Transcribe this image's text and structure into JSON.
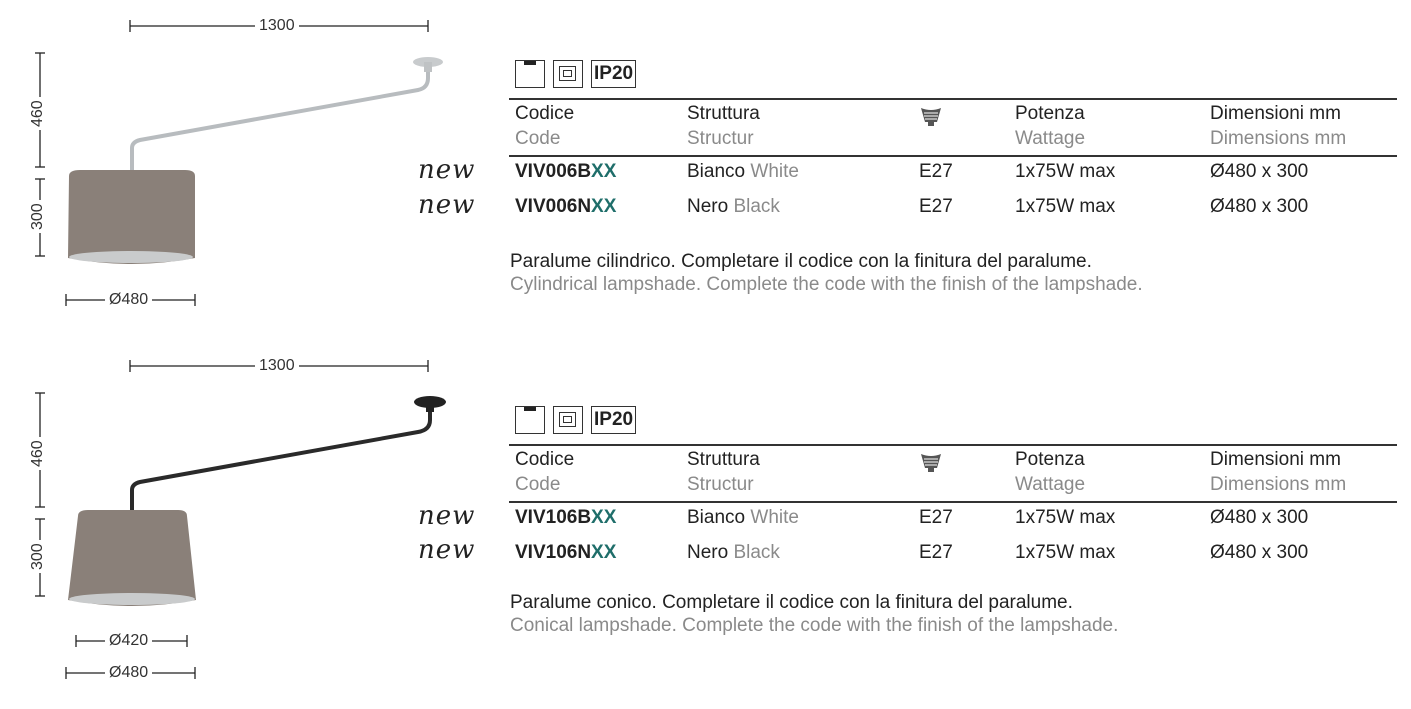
{
  "headers": {
    "code_it": "Codice",
    "code_en": "Code",
    "struct_it": "Struttura",
    "struct_en": "Structur",
    "bulb_icon": "e27-bulb-icon",
    "power_it": "Potenza",
    "power_en": "Wattage",
    "dim_it": "Dimensioni mm",
    "dim_en": "Dimensions mm"
  },
  "badges": {
    "ceiling_icon": "ceiling-mount-icon",
    "class2_icon": "double-insulation-icon",
    "ip": "IP20"
  },
  "new_label": "new",
  "accent": "#1f6e6a",
  "sections": [
    {
      "width": "1300",
      "height_arm": "460",
      "height_shade": "300",
      "diam_bottom": "Ø480",
      "rows": [
        {
          "code": "VIV006B",
          "suffix": "XX",
          "struct_it": "Bianco",
          "struct_en": "White",
          "socket": "E27",
          "power": "1x75W max",
          "dims": "Ø480 x 300"
        },
        {
          "code": "VIV006N",
          "suffix": "XX",
          "struct_it": "Nero",
          "struct_en": "Black",
          "socket": "E27",
          "power": "1x75W max",
          "dims": "Ø480 x 300"
        }
      ],
      "desc_it": "Paralume cilindrico. Completare il codice con la finitura del paralume.",
      "desc_en": "Cylindrical lampshade. Complete the code with the finish of the lampshade."
    },
    {
      "width": "1300",
      "height_arm": "460",
      "height_shade": "300",
      "diam_top": "Ø420",
      "diam_bottom": "Ø480",
      "rows": [
        {
          "code": "VIV106B",
          "suffix": "XX",
          "struct_it": "Bianco",
          "struct_en": "White",
          "socket": "E27",
          "power": "1x75W max",
          "dims": "Ø480 x 300"
        },
        {
          "code": "VIV106N",
          "suffix": "XX",
          "struct_it": "Nero",
          "struct_en": "Black",
          "socket": "E27",
          "power": "1x75W max",
          "dims": "Ø480 x 300"
        }
      ],
      "desc_it": "Paralume conico. Completare il codice con la finitura del paralume.",
      "desc_en": "Conical lampshade. Complete the code with the finish of the lampshade."
    }
  ]
}
